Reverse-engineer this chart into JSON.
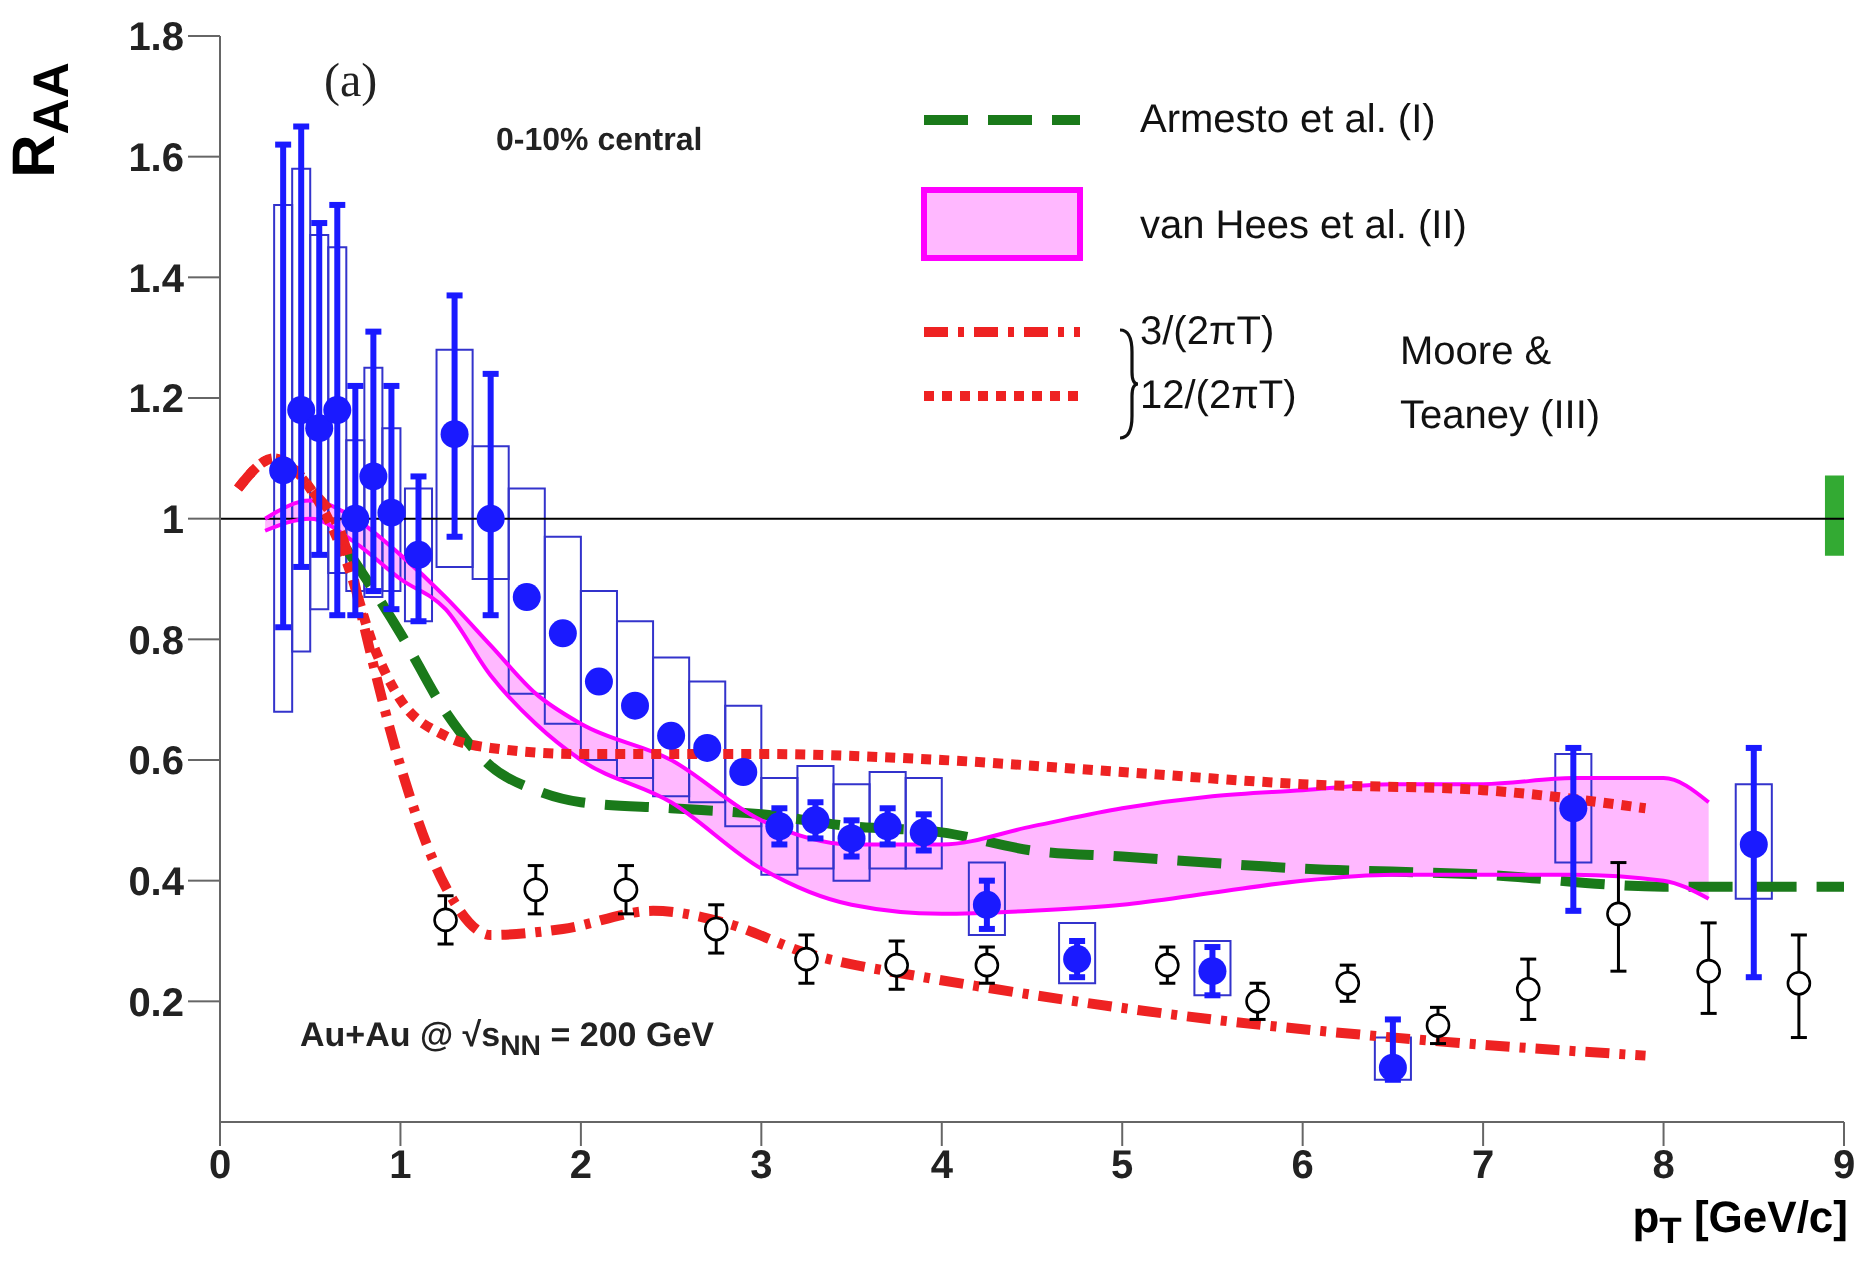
{
  "chart_data": {
    "type": "scatter",
    "xlabel": "p$_{T}$ [GeV/c]",
    "ylabel": "R$_{AA}$",
    "xlim": [
      0,
      9
    ],
    "ylim": [
      0,
      1.8
    ],
    "xticks": [
      0,
      1,
      2,
      3,
      4,
      5,
      6,
      7,
      8,
      9
    ],
    "yticks": [
      0.2,
      0.4,
      0.6,
      0.8,
      1,
      1.2,
      1.4,
      1.6,
      1.8
    ],
    "legend": "top right",
    "marker": "circle",
    "annotations": [
      "(a)",
      "0-10% central",
      "Au+Au @ √s$_{NN}$ = 200 GeV",
      "Moore & Teaney (III)"
    ],
    "ref_lines": [
      {
        "axis": "y",
        "value": 1,
        "color": "#000000"
      }
    ],
    "series": [
      {
        "type": "bar",
        "color": "#33aa33",
        "x": [
          9
        ],
        "base": [
          0.94
        ],
        "values": [
          0.13
        ]
      },
      {
        "type": "line",
        "color": "#1a7a1a",
        "line_style": "dashed",
        "marker": "none",
        "name": "Armesto et al. (I)",
        "x": [
          0.7,
          1.0,
          1.25,
          1.5,
          1.75,
          2.0,
          2.5,
          3.0,
          3.5,
          4.0,
          4.5,
          5.0,
          6.0,
          7.0,
          8.0,
          9.0
        ],
        "values": [
          0.95,
          0.81,
          0.68,
          0.59,
          0.55,
          0.53,
          0.52,
          0.51,
          0.49,
          0.48,
          0.45,
          0.44,
          0.42,
          0.41,
          0.39,
          0.39
        ]
      },
      {
        "type": "bar",
        "color": "#3333cc",
        "x": [
          0.35,
          0.45,
          0.55,
          0.65,
          0.75,
          0.85,
          0.95,
          1.1,
          1.3,
          1.5,
          1.7,
          1.9,
          2.1,
          2.3,
          2.5,
          2.7,
          2.9,
          3.1,
          3.3,
          3.5,
          3.7,
          3.9,
          4.25,
          4.75,
          5.5,
          6.5,
          7.5,
          8.5
        ],
        "base": [
          0.68,
          0.78,
          0.85,
          0.91,
          0.88,
          0.87,
          0.88,
          0.83,
          0.92,
          0.9,
          0.71,
          0.66,
          0.6,
          0.57,
          0.54,
          0.53,
          0.49,
          0.41,
          0.42,
          0.4,
          0.42,
          0.42,
          0.31,
          0.23,
          0.21,
          0.07,
          0.43,
          0.37
        ],
        "values": [
          0.84,
          0.8,
          0.62,
          0.54,
          0.25,
          0.38,
          0.27,
          0.22,
          0.36,
          0.22,
          0.34,
          0.31,
          0.28,
          0.26,
          0.23,
          0.2,
          0.2,
          0.16,
          0.17,
          0.16,
          0.16,
          0.15,
          0.12,
          0.1,
          0.09,
          0.07,
          0.18,
          0.19
        ]
      },
      {
        "type": "area",
        "color": "#ff00ff",
        "x": [
          0.25,
          0.5,
          0.75,
          1.0,
          1.25,
          1.5,
          1.75,
          2.0,
          2.5,
          3.0,
          3.5,
          4.0,
          4.5,
          5.0,
          5.5,
          6.0,
          6.5,
          7.0,
          7.5,
          8.0,
          8.25
        ],
        "lower": [
          0.98,
          1.0,
          0.96,
          0.9,
          0.85,
          0.74,
          0.66,
          0.6,
          0.53,
          0.42,
          0.36,
          0.345,
          0.35,
          0.36,
          0.38,
          0.4,
          0.41,
          0.41,
          0.41,
          0.4,
          0.37
        ],
        "upper": [
          1.0,
          1.03,
          1.0,
          0.94,
          0.87,
          0.79,
          0.71,
          0.66,
          0.6,
          0.5,
          0.46,
          0.46,
          0.49,
          0.52,
          0.54,
          0.55,
          0.56,
          0.56,
          0.57,
          0.57,
          0.53
        ],
        "values": [
          null,
          null,
          null,
          null,
          null,
          null,
          null,
          null,
          null,
          null,
          null,
          null,
          null,
          null,
          null,
          null,
          null,
          null,
          null,
          null,
          null
        ],
        "name": "van Hees et al. (II)"
      },
      {
        "type": "line",
        "color": "#ff00ff",
        "line_style": "solid",
        "marker": "none",
        "x": [
          0.25,
          0.5,
          0.75,
          1.0,
          1.25,
          1.5,
          1.75,
          2.0,
          2.5,
          3.0,
          3.5,
          4.0,
          4.5,
          5.0,
          5.5,
          6.0,
          6.5,
          7.0,
          7.5,
          8.0,
          8.25
        ],
        "values": [
          1.0,
          1.03,
          1.0,
          0.94,
          0.87,
          0.79,
          0.71,
          0.66,
          0.6,
          0.5,
          0.46,
          0.46,
          0.49,
          0.52,
          0.54,
          0.55,
          0.56,
          0.56,
          0.57,
          0.57,
          0.53
        ]
      },
      {
        "type": "line",
        "color": "#ff00ff",
        "line_style": "solid",
        "marker": "none",
        "x": [
          0.25,
          0.5,
          0.75,
          1.0,
          1.25,
          1.5,
          1.75,
          2.0,
          2.5,
          3.0,
          3.5,
          4.0,
          4.5,
          5.0,
          5.5,
          6.0,
          6.5,
          7.0,
          7.5,
          8.0,
          8.25
        ],
        "values": [
          0.98,
          1.0,
          0.96,
          0.9,
          0.85,
          0.74,
          0.66,
          0.6,
          0.53,
          0.42,
          0.36,
          0.345,
          0.35,
          0.36,
          0.38,
          0.4,
          0.41,
          0.41,
          0.41,
          0.4,
          0.37
        ]
      },
      {
        "type": "line",
        "color": "#ee2222",
        "line_style": "dashdot",
        "marker": "none",
        "name": "3/(2πT)",
        "x": [
          0.1,
          0.3,
          0.5,
          0.7,
          0.8,
          1.0,
          1.25,
          1.5,
          1.9,
          2.4,
          2.8,
          3.25,
          3.9,
          4.2,
          5.5,
          6.7,
          7.9
        ],
        "values": [
          1.05,
          1.1,
          1.05,
          0.95,
          0.82,
          0.59,
          0.39,
          0.31,
          0.32,
          0.35,
          0.33,
          0.28,
          0.24,
          0.225,
          0.17,
          0.135,
          0.11
        ]
      },
      {
        "type": "line",
        "color": "#ee2222",
        "line_style": "dotted",
        "marker": "none",
        "name": "12/(2πT)",
        "x": [
          0.1,
          0.3,
          0.5,
          0.7,
          0.85,
          1.0,
          1.25,
          1.5,
          2.0,
          3.0,
          4.0,
          5.0,
          6.0,
          7.0,
          7.9
        ],
        "values": [
          1.05,
          1.1,
          1.05,
          0.93,
          0.79,
          0.7,
          0.64,
          0.62,
          0.61,
          0.61,
          0.6,
          0.58,
          0.56,
          0.55,
          0.52
        ]
      },
      {
        "color": "#000000",
        "marker": "open_circle",
        "x": [
          1.25,
          1.75,
          2.25,
          2.75,
          3.25,
          3.75,
          4.25,
          5.25,
          5.75,
          6.25,
          6.75,
          7.25,
          7.75,
          8.25,
          8.75
        ],
        "values": [
          0.335,
          0.385,
          0.385,
          0.32,
          0.27,
          0.26,
          0.26,
          0.26,
          0.2,
          0.23,
          0.16,
          0.22,
          0.345,
          0.25,
          0.23
        ],
        "errors": [
          0.04,
          0.04,
          0.04,
          0.04,
          0.04,
          0.04,
          0.03,
          0.03,
          0.03,
          0.03,
          0.03,
          0.05,
          [
            0.25,
            0.43
          ],
          [
            0.18,
            0.33
          ],
          [
            0.14,
            0.31
          ]
        ]
      },
      {
        "color": "#1a1aff",
        "x": [
          0.35,
          0.45,
          0.55,
          0.65,
          0.75,
          0.85,
          0.95,
          1.1,
          1.3,
          1.5,
          1.7,
          1.9,
          2.1,
          2.3,
          2.5,
          2.7,
          2.9,
          3.1,
          3.3,
          3.5,
          3.7,
          3.9,
          4.25,
          4.75,
          5.5,
          6.5,
          7.5,
          8.5
        ],
        "values": [
          1.08,
          1.18,
          1.15,
          1.18,
          1.0,
          1.07,
          1.01,
          0.94,
          1.14,
          1.0,
          0.87,
          0.81,
          0.73,
          0.69,
          0.64,
          0.62,
          0.58,
          0.49,
          0.5,
          0.47,
          0.49,
          0.48,
          0.36,
          0.27,
          0.25,
          0.09,
          0.52,
          0.46
        ],
        "errors": [
          [
            0.82,
            1.62
          ],
          [
            0.92,
            1.65
          ],
          [
            0.94,
            1.49
          ],
          [
            0.84,
            1.52
          ],
          [
            0.84,
            1.22
          ],
          [
            0.88,
            1.31
          ],
          [
            0.85,
            1.22
          ],
          [
            0.83,
            1.07
          ],
          [
            0.97,
            1.37
          ],
          [
            0.84,
            1.24
          ],
          null,
          null,
          null,
          null,
          null,
          null,
          null,
          0.03,
          0.03,
          0.03,
          0.03,
          0.03,
          0.04,
          0.03,
          0.04,
          [
            0.07,
            0.17
          ],
          [
            0.35,
            0.62
          ],
          [
            0.24,
            0.62
          ]
        ]
      }
    ]
  }
}
